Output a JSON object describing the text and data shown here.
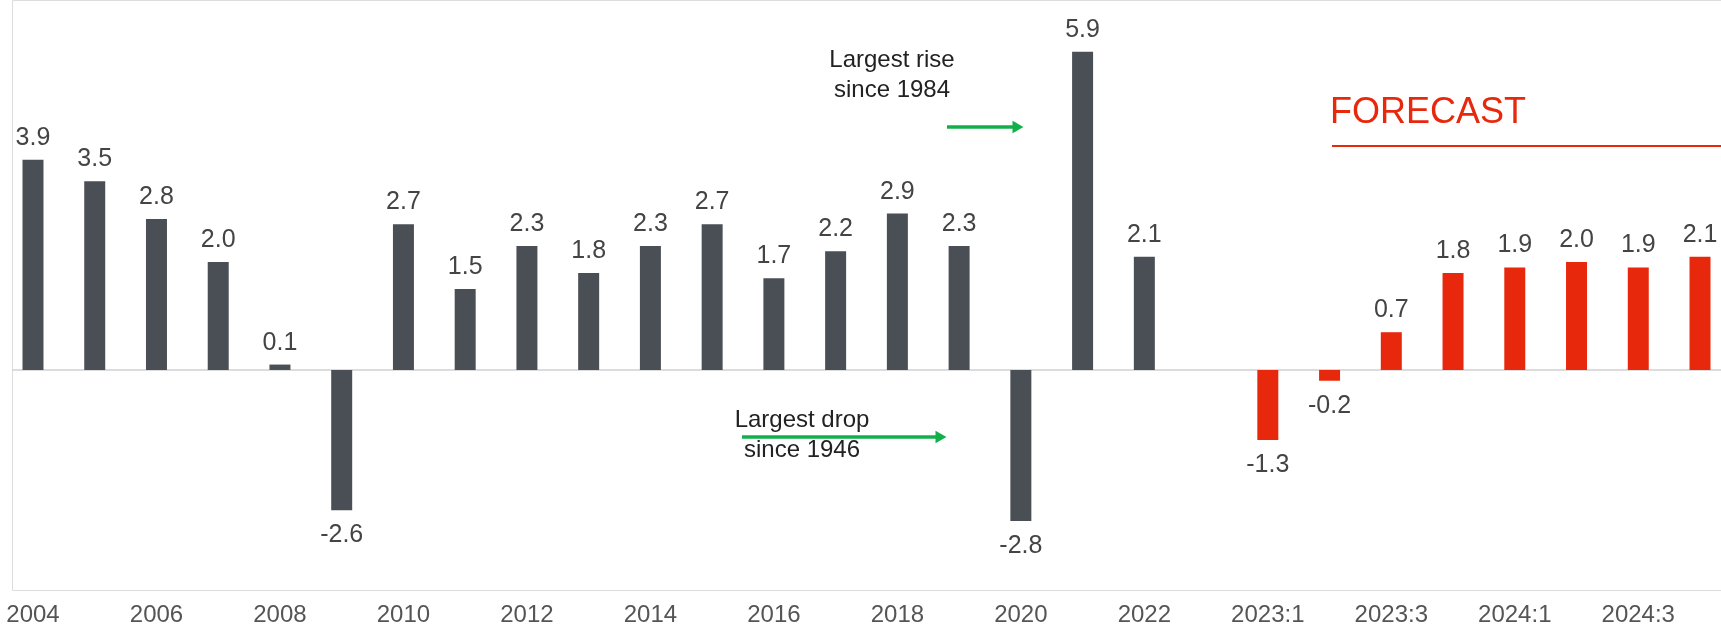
{
  "chart_data": {
    "type": "bar",
    "categories": [
      "2004",
      null,
      "2006",
      null,
      "2008",
      null,
      "2010",
      null,
      "2012",
      null,
      "2014",
      null,
      "2016",
      null,
      "2018",
      null,
      "2020",
      null,
      "2022",
      null,
      "2023:1",
      null,
      "2023:3",
      null,
      "2024:1",
      null,
      "2024:3",
      null
    ],
    "values": [
      3.9,
      3.5,
      2.8,
      2.0,
      0.1,
      -2.6,
      2.7,
      1.5,
      2.3,
      1.8,
      2.3,
      2.7,
      1.7,
      2.2,
      2.9,
      2.3,
      -2.8,
      5.9,
      2.1,
      null,
      -1.3,
      -0.2,
      0.7,
      1.8,
      1.9,
      2.0,
      1.9,
      2.1
    ],
    "colors": [
      "#4a4f55",
      "#4a4f55",
      "#4a4f55",
      "#4a4f55",
      "#4a4f55",
      "#4a4f55",
      "#4a4f55",
      "#4a4f55",
      "#4a4f55",
      "#4a4f55",
      "#4a4f55",
      "#4a4f55",
      "#4a4f55",
      "#4a4f55",
      "#4a4f55",
      "#4a4f55",
      "#4a4f55",
      "#4a4f55",
      "#4a4f55",
      "#4a4f55",
      "#e8280c",
      "#e8280c",
      "#e8280c",
      "#e8280c",
      "#e8280c",
      "#e8280c",
      "#e8280c",
      "#e8280c"
    ],
    "value_labels": [
      "3.9",
      "3.5",
      "2.8",
      "2.0",
      "0.1",
      "-2.6",
      "2.7",
      "1.5",
      "2.3",
      "1.8",
      "2.3",
      "2.7",
      "1.7",
      "2.2",
      "2.9",
      "2.3",
      "-2.8",
      "5.9",
      "2.1",
      null,
      "-1.3",
      "-0.2",
      "0.7",
      "1.8",
      "1.9",
      "2.0",
      "1.9",
      "2.1"
    ],
    "grid": false,
    "annotations": [
      "Largest rise since 1984",
      "Largest drop since 1946",
      "FORECAST"
    ]
  }
}
